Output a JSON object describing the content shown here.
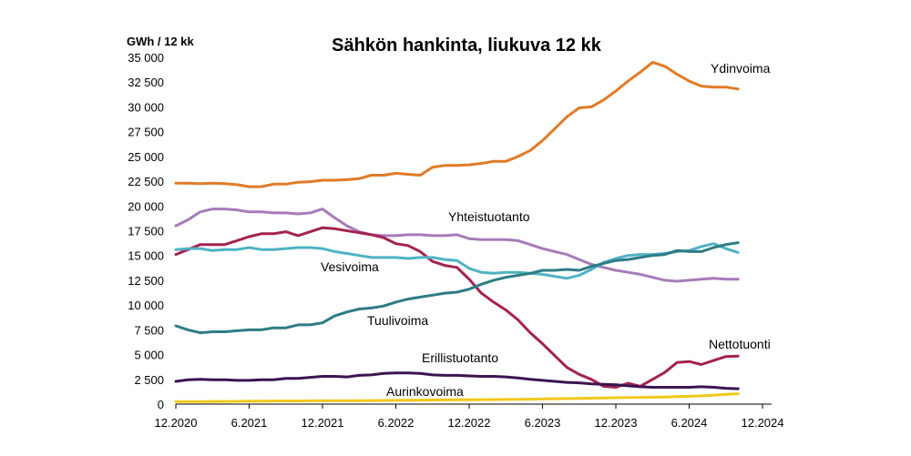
{
  "chart_data": {
    "type": "line",
    "title": "Sähkön hankinta, liukuva 12 kk",
    "ylabel": "GWh / 12 kk",
    "xlabel": "",
    "ylim": [
      0,
      35000
    ],
    "y_ticks": [
      0,
      2500,
      5000,
      7500,
      10000,
      12500,
      15000,
      17500,
      20000,
      22500,
      25000,
      27500,
      30000,
      32500,
      35000
    ],
    "y_tick_labels": [
      "0",
      "2 500",
      "5 000",
      "7 500",
      "10 000",
      "12 500",
      "15 000",
      "17 500",
      "20 000",
      "22 500",
      "25 000",
      "27 500",
      "30 000",
      "32 500",
      "35 000"
    ],
    "x_range": [
      "2020-12",
      "2024-12"
    ],
    "x_ticks": [
      "2020-12",
      "2021-06",
      "2021-12",
      "2022-06",
      "2022-12",
      "2023-06",
      "2023-12",
      "2024-06",
      "2024-12"
    ],
    "x_tick_labels": [
      "12.2020",
      "6.2021",
      "12.2021",
      "6.2022",
      "12.2022",
      "6.2023",
      "12.2023",
      "6.2024",
      "12.2024"
    ],
    "x_start": "2020-12",
    "x_step": "1 month",
    "series": [
      {
        "name": "Ydinvoima",
        "color": "#E07B26",
        "values": [
          22300,
          22300,
          22250,
          22300,
          22250,
          22150,
          21950,
          21950,
          22200,
          22200,
          22400,
          22450,
          22600,
          22600,
          22650,
          22750,
          23100,
          23100,
          23300,
          23200,
          23100,
          23900,
          24100,
          24100,
          24150,
          24300,
          24500,
          24500,
          25000,
          25600,
          26600,
          27800,
          29000,
          29900,
          30000,
          30700,
          31600,
          32600,
          33500,
          34500,
          34100,
          33300,
          32600,
          32100,
          32000,
          32000,
          31800
        ]
      },
      {
        "name": "Yhteistuotanto",
        "color": "#A77BB8",
        "values": [
          18000,
          18600,
          19400,
          19700,
          19700,
          19600,
          19400,
          19400,
          19300,
          19300,
          19200,
          19300,
          19700,
          18800,
          18000,
          17400,
          17100,
          17000,
          17000,
          17100,
          17100,
          17000,
          17000,
          17100,
          16700,
          16600,
          16600,
          16600,
          16500,
          16100,
          15700,
          15400,
          15100,
          14600,
          14100,
          13800,
          13500,
          13300,
          13100,
          12800,
          12500,
          12400,
          12500,
          12600,
          12700,
          12600,
          12600
        ]
      },
      {
        "name": "Nettotuonti",
        "color": "#A42252",
        "values": [
          15100,
          15600,
          16100,
          16100,
          16100,
          16500,
          16900,
          17200,
          17200,
          17400,
          17000,
          17400,
          17800,
          17700,
          17500,
          17300,
          17100,
          16800,
          16200,
          16000,
          15400,
          14400,
          14000,
          13800,
          12600,
          11200,
          10300,
          9500,
          8500,
          7200,
          6100,
          4900,
          3700,
          3000,
          2500,
          1800,
          1700,
          2100,
          1800,
          2500,
          3200,
          4200,
          4300,
          4000,
          4400,
          4800,
          4850
        ]
      },
      {
        "name": "Vesivoima",
        "color": "#4FB3C4",
        "values": [
          15600,
          15700,
          15700,
          15500,
          15600,
          15600,
          15800,
          15600,
          15600,
          15700,
          15800,
          15800,
          15700,
          15400,
          15200,
          15000,
          14800,
          14800,
          14800,
          14700,
          14800,
          14800,
          14600,
          14500,
          13700,
          13300,
          13200,
          13300,
          13300,
          13200,
          13100,
          12900,
          12700,
          13000,
          13600,
          14300,
          14700,
          15000,
          15100,
          15100,
          15200,
          15400,
          15500,
          15900,
          16200,
          15700,
          15300
        ]
      },
      {
        "name": "Tuulivoima",
        "color": "#2D7C84",
        "values": [
          7900,
          7500,
          7200,
          7300,
          7300,
          7400,
          7500,
          7500,
          7700,
          7700,
          8000,
          8000,
          8200,
          8900,
          9300,
          9600,
          9700,
          9900,
          10300,
          10600,
          10800,
          11000,
          11200,
          11300,
          11600,
          12100,
          12500,
          12800,
          13000,
          13200,
          13500,
          13500,
          13600,
          13500,
          13900,
          14200,
          14500,
          14600,
          14800,
          15000,
          15100,
          15500,
          15400,
          15400,
          15800,
          16100,
          16300
        ]
      },
      {
        "name": "Erillistuotanto",
        "color": "#3D1452",
        "values": [
          2300,
          2450,
          2500,
          2450,
          2450,
          2400,
          2400,
          2450,
          2450,
          2600,
          2600,
          2700,
          2800,
          2800,
          2750,
          2900,
          2950,
          3100,
          3150,
          3150,
          3100,
          2950,
          2900,
          2900,
          2850,
          2800,
          2800,
          2750,
          2650,
          2500,
          2400,
          2300,
          2200,
          2150,
          2050,
          2000,
          1950,
          1850,
          1750,
          1700,
          1700,
          1700,
          1700,
          1750,
          1700,
          1600,
          1550
        ]
      },
      {
        "name": "Aurinkovoima",
        "color": "#F2C81A",
        "values": [
          250,
          255,
          260,
          265,
          270,
          280,
          290,
          300,
          310,
          320,
          325,
          330,
          335,
          340,
          345,
          350,
          360,
          370,
          380,
          390,
          400,
          410,
          420,
          430,
          440,
          450,
          460,
          470,
          480,
          500,
          520,
          540,
          560,
          580,
          600,
          620,
          640,
          660,
          680,
          700,
          720,
          750,
          790,
          840,
          900,
          980,
          1050
        ]
      }
    ]
  }
}
